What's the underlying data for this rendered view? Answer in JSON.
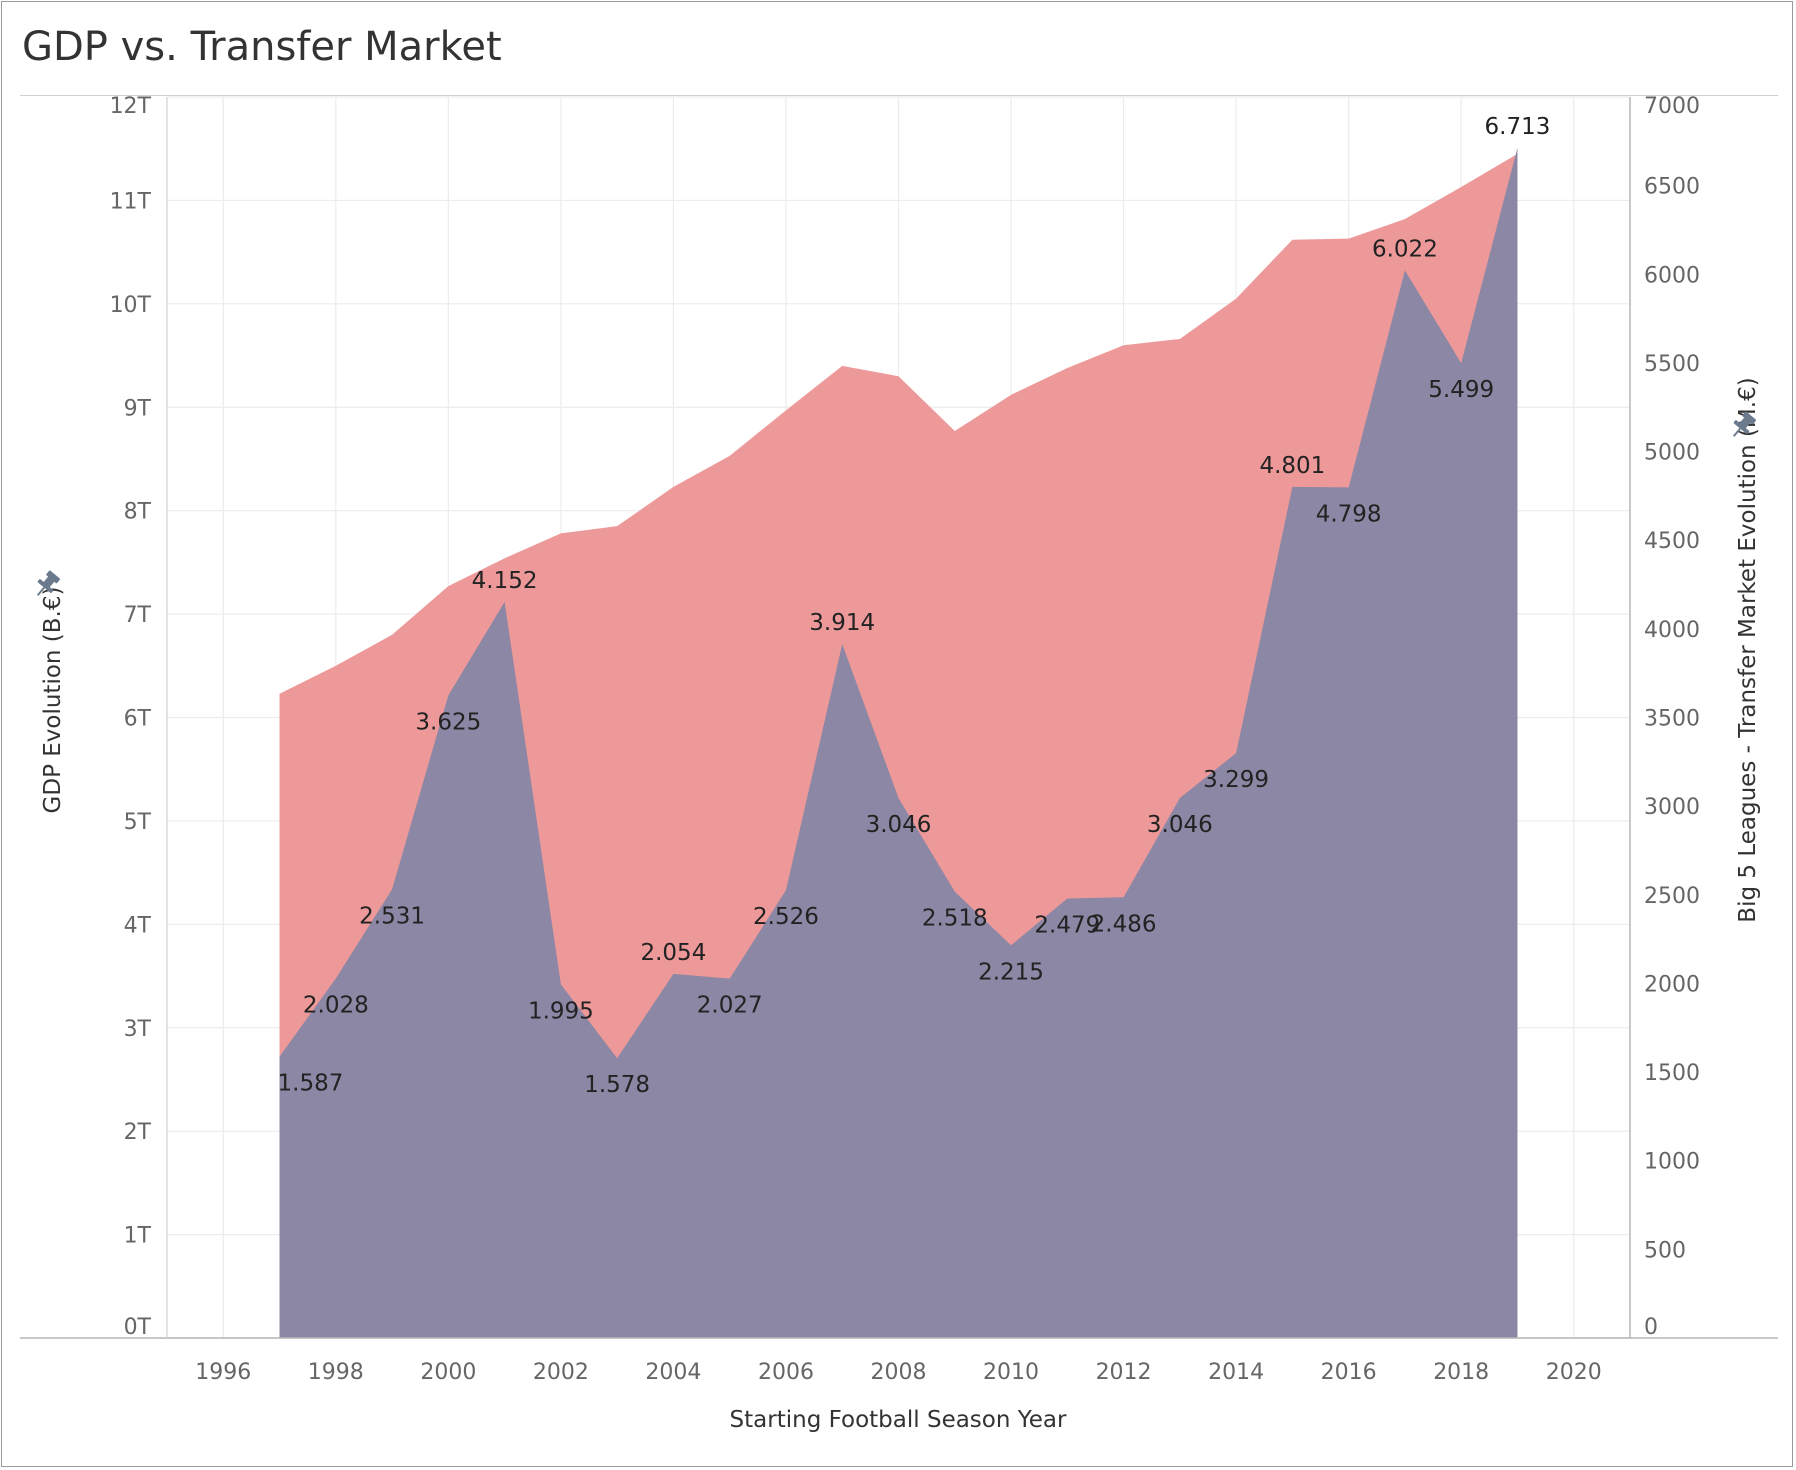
{
  "title": "GDP vs. Transfer Market",
  "colors": {
    "gdp_area": "#ee9999",
    "transfer_area": "#8c87a4",
    "grid": "#ececec",
    "pin": "#6b7a8c"
  },
  "icons": {
    "left_axis_pin": "pin-icon",
    "right_axis_pin": "pin-icon"
  },
  "chart_data": {
    "type": "area",
    "title": "GDP vs. Transfer Market",
    "xlabel": "Starting Football Season Year",
    "ylabel_left": "GDP Evolution (B.€)",
    "ylabel_right": "Big 5 Leagues - Transfer Market Evolution (M.€)",
    "xlim": [
      1995,
      2021
    ],
    "ylim_left": [
      0,
      12
    ],
    "ylim_right": [
      0,
      7000
    ],
    "x_ticks": [
      "1996",
      "1998",
      "2000",
      "2002",
      "2004",
      "2006",
      "2008",
      "2010",
      "2012",
      "2014",
      "2016",
      "2018",
      "2020"
    ],
    "y_ticks_left": [
      "0T",
      "1T",
      "2T",
      "3T",
      "4T",
      "5T",
      "6T",
      "7T",
      "8T",
      "9T",
      "10T",
      "11T",
      "12T"
    ],
    "y_ticks_right": [
      "0",
      "500",
      "1000",
      "1500",
      "2000",
      "2500",
      "3000",
      "3500",
      "4000",
      "4500",
      "5000",
      "5500",
      "6000",
      "6500",
      "7000"
    ],
    "grid": true,
    "legend": "none",
    "x": [
      1997,
      1998,
      1999,
      2000,
      2001,
      2002,
      2003,
      2004,
      2005,
      2006,
      2007,
      2008,
      2009,
      2010,
      2011,
      2012,
      2013,
      2014,
      2015,
      2016,
      2017,
      2018,
      2019
    ],
    "series": [
      {
        "axis": "left",
        "values": [
          6.23,
          6.5,
          6.8,
          7.27,
          7.54,
          7.78,
          7.85,
          8.23,
          8.53,
          8.97,
          9.4,
          9.3,
          8.77,
          9.12,
          9.38,
          9.6,
          9.66,
          10.05,
          10.62,
          10.63,
          10.82,
          11.13,
          11.45
        ]
      },
      {
        "axis": "right",
        "values": [
          1587,
          2028,
          2531,
          3625,
          4152,
          1995,
          1578,
          2054,
          2027,
          2526,
          3914,
          3046,
          2518,
          2215,
          2479,
          2486,
          3046,
          3299,
          4801,
          4798,
          6022,
          5499,
          6713
        ],
        "labels": [
          "1.587",
          "2.028",
          "2.531",
          "3.625",
          "4.152",
          "1.995",
          "1.578",
          "2.054",
          "2.027",
          "2.526",
          "3.914",
          "3.046",
          "2.518",
          "2.215",
          "2.479",
          "2.486",
          "3.046",
          "3.299",
          "4.801",
          "4.798",
          "6.022",
          "5.499",
          "6.713"
        ]
      }
    ]
  }
}
